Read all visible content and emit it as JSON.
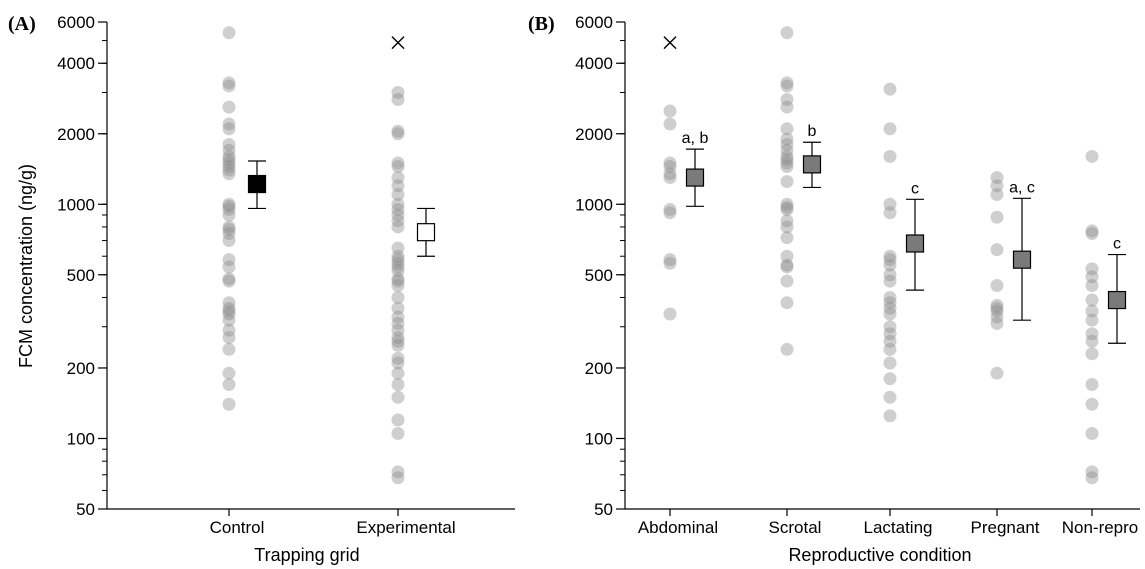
{
  "colors": {
    "axis": "#000000",
    "point": "#8c8c8c",
    "control_mean": "#000000",
    "experimental_mean": "#ffffff",
    "repro_mean": "#7a7a7a"
  },
  "chart_data": [
    {
      "panel": "(A)",
      "type": "scatter",
      "scale": "log",
      "xlabel": "Trapping grid",
      "ylabel": "FCM concentration (ng/g)",
      "ylim": [
        50,
        6000
      ],
      "yticks": [
        "50",
        "100",
        "200",
        "500",
        "1000",
        "2000",
        "4000",
        "6000"
      ],
      "categories": [
        "Control",
        "Experimental"
      ],
      "points": [
        [
          5400,
          3300,
          3200,
          2600,
          2200,
          2100,
          1800,
          1700,
          1600,
          1550,
          1500,
          1450,
          1400,
          1350,
          1000,
          980,
          950,
          900,
          800,
          780,
          750,
          700,
          580,
          540,
          480,
          470,
          380,
          360,
          350,
          340,
          320,
          290,
          270,
          240,
          190,
          170,
          140
        ],
        [
          3000,
          2800,
          2050,
          2000,
          1500,
          1450,
          1300,
          1200,
          1100,
          1000,
          950,
          900,
          850,
          800,
          650,
          600,
          580,
          560,
          540,
          520,
          480,
          470,
          450,
          400,
          360,
          330,
          310,
          290,
          270,
          260,
          250,
          220,
          210,
          190,
          170,
          150,
          120,
          105,
          72,
          68
        ]
      ],
      "outliers": [
        null,
        4900
      ],
      "means": [
        1220,
        760
      ],
      "ci_low": [
        960,
        600
      ],
      "ci_high": [
        1530,
        960
      ],
      "mean_fill": [
        "black",
        "white"
      ],
      "sig_labels": [
        "",
        ""
      ]
    },
    {
      "panel": "(B)",
      "type": "scatter",
      "scale": "log",
      "xlabel": "Reproductive condition",
      "ylabel": "",
      "ylim": [
        50,
        6000
      ],
      "yticks": [
        "50",
        "100",
        "200",
        "500",
        "1000",
        "2000",
        "4000",
        "6000"
      ],
      "categories": [
        "Abdominal",
        "Scrotal",
        "Lactating",
        "Pregnant",
        "Non-repro"
      ],
      "points": [
        [
          2500,
          2200,
          1500,
          1450,
          1350,
          1300,
          950,
          920,
          580,
          560,
          340
        ],
        [
          5400,
          3300,
          3200,
          2800,
          2600,
          2100,
          1900,
          1800,
          1700,
          1600,
          1550,
          1500,
          1450,
          1250,
          1000,
          970,
          950,
          850,
          800,
          720,
          600,
          550,
          540,
          470,
          380,
          240
        ],
        [
          3100,
          2100,
          1600,
          1000,
          920,
          600,
          580,
          550,
          500,
          470,
          400,
          380,
          360,
          340,
          300,
          280,
          260,
          240,
          210,
          180,
          150,
          125
        ],
        [
          1300,
          1200,
          1100,
          880,
          640,
          450,
          370,
          360,
          350,
          330,
          310,
          190
        ],
        [
          1600,
          770,
          750,
          530,
          490,
          450,
          390,
          350,
          320,
          280,
          260,
          230,
          170,
          140,
          105,
          72,
          68
        ]
      ],
      "outliers": [
        4900,
        null,
        null,
        null,
        null
      ],
      "means": [
        1300,
        1480,
        680,
        580,
        390
      ],
      "ci_low": [
        980,
        1180,
        430,
        320,
        255
      ],
      "ci_high": [
        1720,
        1840,
        1050,
        1060,
        610
      ],
      "mean_fill": [
        "gray",
        "gray",
        "gray",
        "gray",
        "gray"
      ],
      "sig_labels": [
        "a, b",
        "b",
        "c",
        "a, c",
        "c"
      ]
    }
  ]
}
